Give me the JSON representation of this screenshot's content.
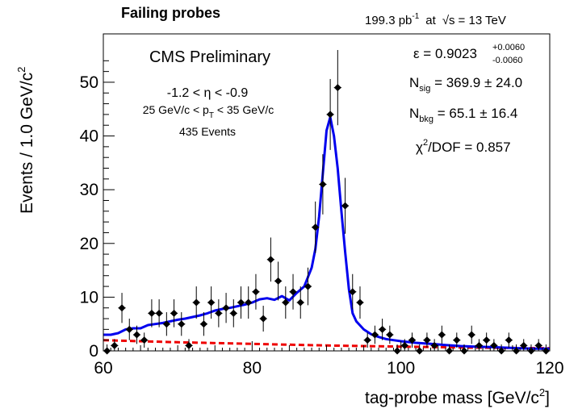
{
  "chart_data": {
    "type": "scatter",
    "title": "Failing probes",
    "lumi_label": {
      "lumi": "199.3 pb",
      "lumi_exp": "-1",
      "at": "at",
      "sqrt": "√s",
      "energy": "= 13 TeV"
    },
    "experiment_label": "CMS Preliminary",
    "selection": {
      "eta": "-1.2 < η < -0.9",
      "pt_pre": "25 GeV/c < p",
      "pt_sub": "T",
      "pt_post": " < 35 GeV/c",
      "events": "435 Events"
    },
    "fit_results": {
      "eff_prefix": "ε = 0.9023",
      "eff_up": "+0.0060",
      "eff_down": "-0.0060",
      "nsig_n": "N",
      "nsig_sub": "sig",
      "nsig_val": " = 369.9 ± 24.0",
      "nbkg_n": "N",
      "nbkg_sub": "bkg",
      "nbkg_val": " = 65.1 ± 16.4",
      "chi2_chi": "χ",
      "chi2_exp": "2",
      "chi2_rest": "/DOF = 0.857"
    },
    "xlabel": "tag-probe mass [GeV/c",
    "xlabel_exp": "2",
    "xlabel_close": "]",
    "ylabel": "Events / 1.0 GeV/c",
    "ylabel_exp": "2",
    "xlim": [
      60,
      120
    ],
    "ylim": [
      0,
      59
    ],
    "x_ticks": [
      60,
      80,
      100,
      120
    ],
    "y_ticks": [
      0,
      10,
      20,
      30,
      40,
      50
    ],
    "grid": false,
    "series": [
      {
        "kind": "data",
        "color": "#000000",
        "x": [
          60.5,
          61.5,
          62.5,
          63.5,
          64.5,
          65.5,
          66.5,
          67.5,
          68.5,
          69.5,
          70.5,
          71.5,
          72.5,
          73.5,
          74.5,
          75.5,
          76.5,
          77.5,
          78.5,
          79.5,
          80.5,
          81.5,
          82.5,
          83.5,
          84.5,
          85.5,
          86.5,
          87.5,
          88.5,
          89.5,
          90.5,
          91.5,
          92.5,
          93.5,
          94.5,
          95.5,
          96.5,
          97.5,
          98.5,
          99.5,
          100.5,
          101.5,
          102.5,
          103.5,
          104.5,
          105.5,
          106.5,
          107.5,
          108.5,
          109.5,
          110.5,
          111.5,
          112.5,
          113.5,
          114.5,
          115.5,
          116.5,
          117.5,
          118.5,
          119.5
        ],
        "y": [
          0,
          1,
          8,
          4,
          3,
          2,
          7,
          7,
          5,
          7,
          5,
          1,
          9,
          5,
          9,
          7,
          8,
          7,
          9,
          9,
          11,
          6,
          17,
          13,
          9,
          11,
          9,
          12,
          23,
          31,
          44,
          49,
          27,
          11,
          9,
          2,
          3,
          4,
          3,
          0,
          1,
          2,
          0,
          2,
          1,
          3,
          0,
          2,
          0,
          3,
          1,
          2,
          1,
          0,
          2,
          0,
          1,
          0,
          1,
          0
        ],
        "yerr": [
          1.2,
          1.2,
          2.8,
          2.0,
          1.7,
          1.4,
          2.6,
          2.6,
          2.2,
          2.6,
          2.2,
          1.2,
          3.0,
          2.2,
          3.0,
          2.6,
          2.8,
          2.6,
          3.0,
          3.0,
          3.3,
          2.4,
          4.1,
          3.6,
          3.0,
          3.3,
          3.0,
          3.5,
          4.8,
          5.6,
          6.6,
          7.0,
          5.2,
          3.3,
          3.0,
          1.4,
          1.7,
          2.0,
          1.7,
          1.2,
          1.2,
          1.4,
          1.2,
          1.4,
          1.2,
          1.7,
          1.2,
          1.4,
          1.2,
          1.7,
          1.2,
          1.4,
          1.2,
          1.2,
          1.4,
          1.2,
          1.2,
          1.2,
          1.2,
          1.2
        ]
      },
      {
        "kind": "total_fit",
        "color": "#0000ee",
        "x": [
          60,
          61,
          62,
          63,
          64,
          65,
          66,
          67,
          68,
          69,
          70,
          71,
          72,
          73,
          74,
          75,
          76,
          77,
          78,
          79,
          80,
          81,
          82,
          83,
          84,
          85,
          86,
          87,
          88,
          88.5,
          89,
          89.5,
          90,
          90.5,
          91,
          91.5,
          92,
          92.5,
          93,
          93.5,
          94,
          95,
          96,
          97,
          98,
          99,
          100,
          102,
          104,
          106,
          108,
          110,
          112,
          114,
          116,
          118,
          120
        ],
        "y": [
          3.0,
          3.0,
          3.3,
          4.0,
          4.2,
          4.2,
          4.8,
          5.0,
          5.2,
          5.5,
          5.8,
          6.0,
          6.3,
          6.6,
          7.0,
          7.5,
          7.8,
          8.0,
          8.3,
          8.6,
          9.0,
          9.6,
          9.8,
          9.5,
          10.2,
          9.4,
          10.8,
          12.0,
          15.5,
          19.0,
          25.0,
          33.0,
          41.0,
          43.5,
          40.0,
          34.0,
          26.0,
          18.5,
          11.5,
          7.0,
          5.5,
          4.0,
          3.1,
          2.6,
          2.2,
          2.0,
          1.8,
          1.5,
          1.3,
          1.1,
          0.9,
          0.8,
          0.7,
          0.6,
          0.5,
          0.4,
          0.4
        ]
      },
      {
        "kind": "background_fit",
        "color": "#ee0000",
        "x": [
          60,
          70,
          80,
          90,
          100,
          110,
          120
        ],
        "y": [
          2.0,
          1.6,
          1.3,
          1.0,
          0.8,
          0.6,
          0.5
        ]
      }
    ]
  }
}
